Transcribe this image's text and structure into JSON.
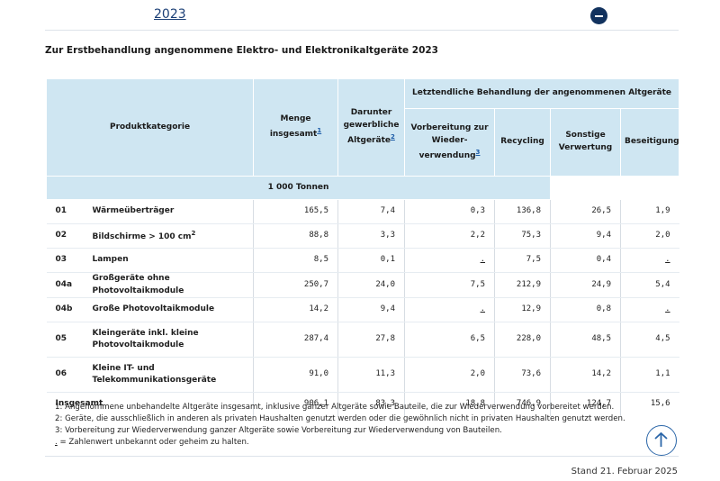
{
  "year_link": "2023",
  "title": "Zur Erstbehandlung angenommene Elektro- und Elektronikaltgeräte 2023",
  "headers": {
    "produktkategorie": "Produktkategorie",
    "menge": "Menge insgesamt",
    "menge_fn": "1",
    "darunter": "Darunter gewerbliche Altgeräte",
    "darunter_fn": "2",
    "letztendlich": "Letztendliche Behandlung der angenommenen Altgeräte",
    "vorbereitung": "Vorbereitung zur Wieder-verwendung",
    "vorbereitung_fn": "3",
    "recycling": "Recycling",
    "sonstige": "Sonstige Verwertung",
    "beseitigung": "Beseitigung",
    "unit": "1 000 Tonnen"
  },
  "rows": [
    {
      "code": "01",
      "label": "Wärmeüberträger",
      "menge": "165,5",
      "darunter": "7,4",
      "vorbereitung": "0,3",
      "recycling": "136,8",
      "sonstige": "26,5",
      "beseitigung": "1,9"
    },
    {
      "code": "02",
      "label": "Bildschirme > 100 cm",
      "label_sup": "2",
      "menge": "88,8",
      "darunter": "3,3",
      "vorbereitung": "2,2",
      "recycling": "75,3",
      "sonstige": "9,4",
      "beseitigung": "2,0"
    },
    {
      "code": "03",
      "label": "Lampen",
      "menge": "8,5",
      "darunter": "0,1",
      "vorbereitung": ".",
      "recycling": "7,5",
      "sonstige": "0,4",
      "beseitigung": "."
    },
    {
      "code": "04a",
      "label": "Großgeräte ohne Photovoltaikmodule",
      "menge": "250,7",
      "darunter": "24,0",
      "vorbereitung": "7,5",
      "recycling": "212,9",
      "sonstige": "24,9",
      "beseitigung": "5,4"
    },
    {
      "code": "04b",
      "label": "Große Photovoltaikmodule",
      "menge": "14,2",
      "darunter": "9,4",
      "vorbereitung": ".",
      "recycling": "12,9",
      "sonstige": "0,8",
      "beseitigung": "."
    },
    {
      "code": "05",
      "label": "Kleingeräte inkl. kleine Photovoltaikmodule",
      "menge": "287,4",
      "darunter": "27,8",
      "vorbereitung": "6,5",
      "recycling": "228,0",
      "sonstige": "48,5",
      "beseitigung": "4,5"
    },
    {
      "code": "06",
      "label": "Kleine IT- und Telekommunikationsgeräte",
      "menge": "91,0",
      "darunter": "11,3",
      "vorbereitung": "2,0",
      "recycling": "73,6",
      "sonstige": "14,2",
      "beseitigung": "1,1"
    }
  ],
  "total": {
    "label": "Insgesamt",
    "menge": "906,1",
    "darunter": "83,3",
    "vorbereitung": "18,8",
    "recycling": "746,9",
    "sonstige": "124,7",
    "beseitigung": "15,6"
  },
  "footnotes": [
    "1: Angenommene unbehandelte Altgeräte insgesamt, inklusive ganzer Altgeräte sowie Bauteile, die zur Wiederverwendung vorbereitet werden.",
    "2: Geräte, die ausschließlich in anderen als privaten Haushalten genutzt werden oder die gewöhnlich nicht in privaten Haushalten genutzt werden.",
    "3: Vorbereitung zur Wiederverwendung ganzer Altgeräte sowie Vorbereitung zur Wiederverwendung von Bauteilen."
  ],
  "footnote_dot_symbol": ".",
  "footnote_dot_text": " = Zahlenwert unbekannt oder geheim zu halten.",
  "stand": "Stand 21. Februar 2025",
  "icons": {
    "collapse": "minus-circle-icon",
    "scroll_top": "arrow-up-circle-icon"
  },
  "colors": {
    "header_bg": "#cfe6f2",
    "accent": "#12325e",
    "link": "#1b3f76"
  }
}
